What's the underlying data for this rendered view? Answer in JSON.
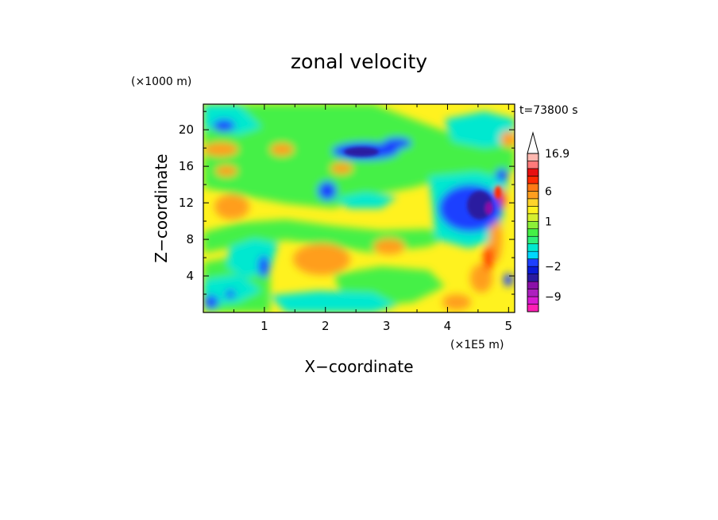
{
  "chart_data": {
    "type": "heatmap",
    "title": "zonal velocity",
    "xlabel": "X−coordinate",
    "ylabel": "Z−coordinate",
    "x_unit": "(×1E5 m)",
    "y_unit": "(×1000 m)",
    "time_label": "t=73800 s",
    "xlim": [
      0,
      5.1
    ],
    "ylim": [
      0,
      22.8
    ],
    "x_ticks": [
      "1",
      "2",
      "3",
      "4",
      "5"
    ],
    "x_tick_values": [
      1,
      2,
      3,
      4,
      5
    ],
    "y_ticks": [
      "4",
      "8",
      "12",
      "16",
      "20"
    ],
    "y_tick_values": [
      4,
      8,
      12,
      16,
      20
    ],
    "colorbar": {
      "labels": [
        "16.9",
        "6",
        "1",
        "−2",
        "−9"
      ],
      "label_values": [
        16.9,
        6,
        1,
        -2,
        -9
      ],
      "levels": [
        -12,
        -10.5,
        -9,
        -7.5,
        -6,
        -4,
        -2,
        -1.5,
        -1,
        -0.5,
        0,
        0.5,
        1,
        1.5,
        2,
        4,
        6,
        8,
        10,
        12,
        14,
        16.9
      ],
      "colors": [
        "#ff1fb5",
        "#d81ad2",
        "#ad1fbf",
        "#8b10a8",
        "#2a1aa0",
        "#0a1ad6",
        "#1e40ff",
        "#00d8ff",
        "#00e8d0",
        "#2ef07a",
        "#45f046",
        "#8cf038",
        "#d6f030",
        "#fff21f",
        "#ffd42a",
        "#ff9e1e",
        "#ff7a14",
        "#ff2a00",
        "#e81010",
        "#ff7a7a",
        "#ffb8b0"
      ],
      "extend": "max"
    },
    "grid": false,
    "legend": "colorbar-right"
  }
}
